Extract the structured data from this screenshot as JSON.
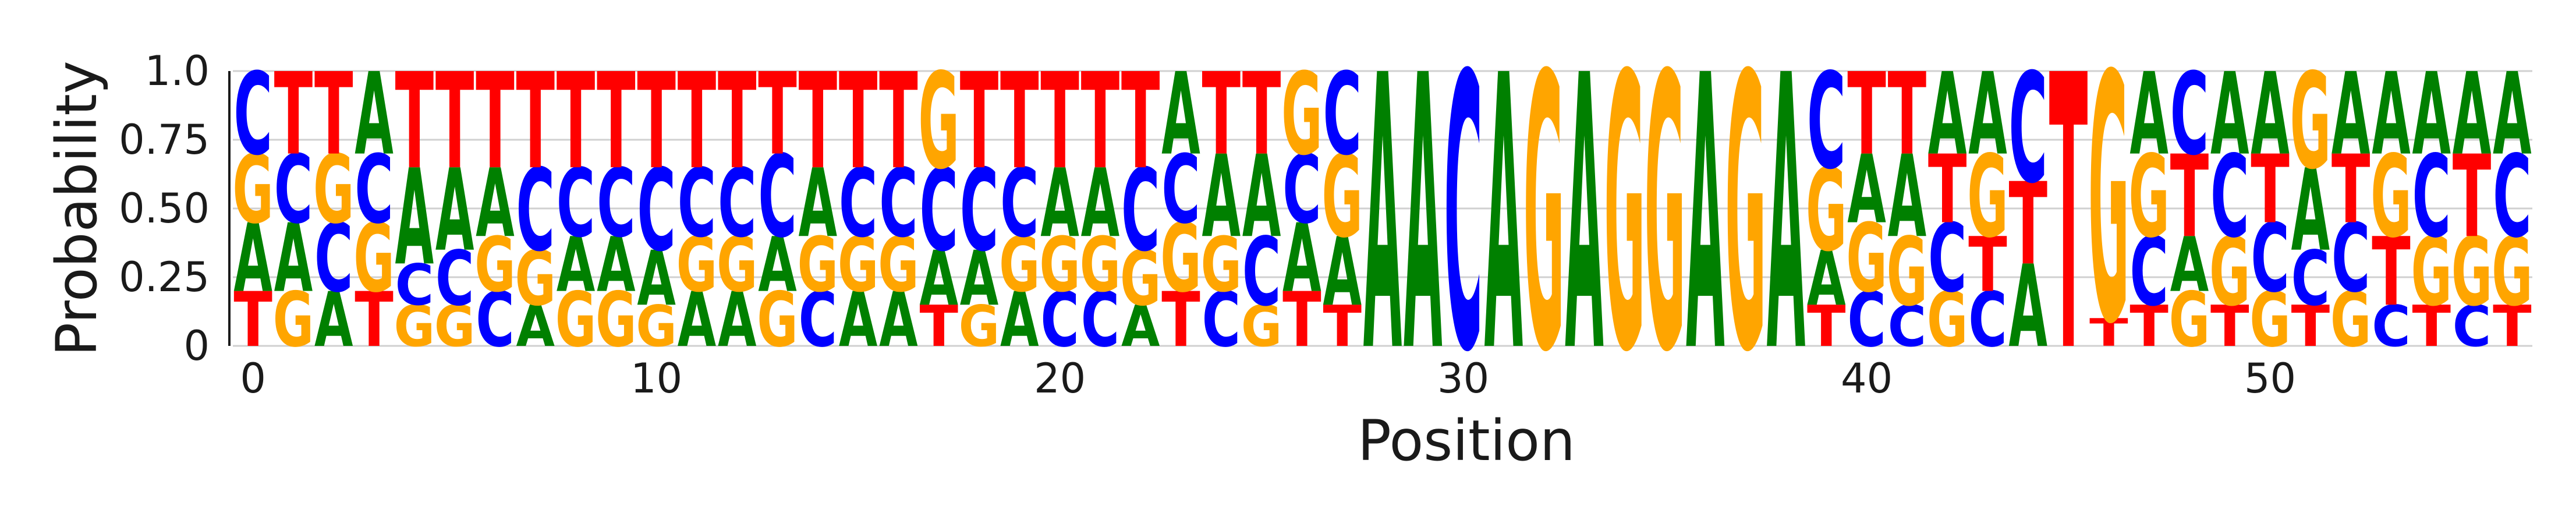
{
  "chart_data": {
    "type": "sequence-logo",
    "xlabel": "Position",
    "ylabel": "Probability",
    "ylim": [
      0,
      1
    ],
    "y_ticks": [
      0,
      0.25,
      0.5,
      0.75,
      1.0
    ],
    "y_tick_labels": [
      "0",
      "0.25",
      "0.50",
      "0.75",
      "1.0"
    ],
    "x_ticks": [
      0,
      10,
      20,
      30,
      40,
      50
    ],
    "x_tick_labels": [
      "0",
      "10",
      "20",
      "30",
      "40",
      "50"
    ],
    "grid": "horizontal",
    "colors": {
      "A": "#008000",
      "C": "#0000ff",
      "G": "#ffa500",
      "T": "#ff0000"
    },
    "positions": [
      {
        "pos": 0,
        "probs": {
          "A": 0.25,
          "G": 0.25,
          "T": 0.2,
          "C": 0.3
        }
      },
      {
        "pos": 1,
        "probs": {
          "A": 0.25,
          "G": 0.2,
          "C": 0.25,
          "T": 0.3
        }
      },
      {
        "pos": 2,
        "probs": {
          "A": 0.2,
          "C": 0.25,
          "G": 0.25,
          "T": 0.3
        }
      },
      {
        "pos": 3,
        "probs": {
          "T": 0.2,
          "G": 0.25,
          "C": 0.25,
          "A": 0.3
        }
      },
      {
        "pos": 4,
        "probs": {
          "G": 0.15,
          "C": 0.15,
          "A": 0.35,
          "T": 0.35
        }
      },
      {
        "pos": 5,
        "probs": {
          "G": 0.15,
          "C": 0.2,
          "A": 0.3,
          "T": 0.35
        }
      },
      {
        "pos": 6,
        "probs": {
          "C": 0.2,
          "G": 0.2,
          "A": 0.25,
          "T": 0.35
        }
      },
      {
        "pos": 7,
        "probs": {
          "A": 0.15,
          "G": 0.2,
          "C": 0.3,
          "T": 0.35
        }
      },
      {
        "pos": 8,
        "probs": {
          "G": 0.2,
          "A": 0.2,
          "C": 0.25,
          "T": 0.35
        }
      },
      {
        "pos": 9,
        "probs": {
          "G": 0.2,
          "C": 0.25,
          "A": 0.2,
          "T": 0.35
        }
      },
      {
        "pos": 10,
        "probs": {
          "G": 0.15,
          "A": 0.2,
          "C": 0.3,
          "T": 0.35
        }
      },
      {
        "pos": 11,
        "probs": {
          "A": 0.2,
          "C": 0.25,
          "G": 0.2,
          "T": 0.35
        }
      },
      {
        "pos": 12,
        "probs": {
          "A": 0.2,
          "C": 0.25,
          "G": 0.2,
          "T": 0.35
        }
      },
      {
        "pos": 13,
        "probs": {
          "G": 0.2,
          "A": 0.2,
          "C": 0.3,
          "T": 0.3
        }
      },
      {
        "pos": 14,
        "probs": {
          "C": 0.2,
          "G": 0.2,
          "A": 0.25,
          "T": 0.35
        }
      },
      {
        "pos": 15,
        "probs": {
          "A": 0.2,
          "C": 0.25,
          "G": 0.2,
          "T": 0.35
        }
      },
      {
        "pos": 16,
        "probs": {
          "A": 0.2,
          "C": 0.25,
          "G": 0.2,
          "T": 0.35
        }
      },
      {
        "pos": 17,
        "probs": {
          "A": 0.2,
          "T": 0.15,
          "G": 0.35,
          "C": 0.3
        }
      },
      {
        "pos": 18,
        "probs": {
          "A": 0.2,
          "G": 0.15,
          "C": 0.3,
          "T": 0.35
        }
      },
      {
        "pos": 19,
        "probs": {
          "A": 0.2,
          "G": 0.2,
          "C": 0.25,
          "T": 0.35
        }
      },
      {
        "pos": 20,
        "probs": {
          "C": 0.2,
          "G": 0.2,
          "A": 0.25,
          "T": 0.35
        }
      },
      {
        "pos": 21,
        "probs": {
          "C": 0.2,
          "G": 0.2,
          "A": 0.25,
          "T": 0.35
        }
      },
      {
        "pos": 22,
        "probs": {
          "A": 0.15,
          "G": 0.2,
          "C": 0.3,
          "T": 0.35
        }
      },
      {
        "pos": 23,
        "probs": {
          "G": 0.25,
          "T": 0.2,
          "A": 0.3,
          "C": 0.25
        }
      },
      {
        "pos": 24,
        "probs": {
          "C": 0.2,
          "G": 0.2,
          "A": 0.3,
          "T": 0.3
        }
      },
      {
        "pos": 25,
        "probs": {
          "G": 0.15,
          "C": 0.25,
          "A": 0.3,
          "T": 0.3
        }
      },
      {
        "pos": 26,
        "probs": {
          "A": 0.25,
          "C": 0.25,
          "T": 0.2,
          "G": 0.3
        }
      },
      {
        "pos": 27,
        "probs": {
          "G": 0.3,
          "T": 0.15,
          "A": 0.25,
          "C": 0.3
        }
      },
      {
        "pos": 28,
        "probs": {
          "A": 1.0
        }
      },
      {
        "pos": 29,
        "probs": {
          "A": 1.0
        }
      },
      {
        "pos": 30,
        "probs": {
          "C": 1.0
        }
      },
      {
        "pos": 31,
        "probs": {
          "A": 1.0
        }
      },
      {
        "pos": 32,
        "probs": {
          "G": 1.0
        }
      },
      {
        "pos": 33,
        "probs": {
          "A": 1.0
        }
      },
      {
        "pos": 34,
        "probs": {
          "G": 1.0
        }
      },
      {
        "pos": 35,
        "probs": {
          "G": 1.0
        }
      },
      {
        "pos": 36,
        "probs": {
          "A": 1.0
        }
      },
      {
        "pos": 37,
        "probs": {
          "G": 1.0
        }
      },
      {
        "pos": 38,
        "probs": {
          "A": 1.0
        }
      },
      {
        "pos": 39,
        "probs": {
          "T": 0.15,
          "C": 0.35,
          "G": 0.3,
          "A": 0.2
        }
      },
      {
        "pos": 40,
        "probs": {
          "C": 0.2,
          "G": 0.25,
          "A": 0.25,
          "T": 0.3
        }
      },
      {
        "pos": 41,
        "probs": {
          "C": 0.15,
          "G": 0.25,
          "A": 0.3,
          "T": 0.3
        }
      },
      {
        "pos": 42,
        "probs": {
          "G": 0.2,
          "C": 0.25,
          "T": 0.25,
          "A": 0.3
        }
      },
      {
        "pos": 43,
        "probs": {
          "C": 0.2,
          "T": 0.2,
          "G": 0.3,
          "A": 0.3
        }
      },
      {
        "pos": 44,
        "probs": {
          "A": 0.3,
          "T": 0.3,
          "C": 0.4
        }
      },
      {
        "pos": 45,
        "probs": {
          "T": 1.0
        }
      },
      {
        "pos": 46,
        "probs": {
          "G": 0.9,
          "T": 0.1
        }
      },
      {
        "pos": 47,
        "probs": {
          "T": 0.15,
          "C": 0.25,
          "G": 0.3,
          "A": 0.3
        }
      },
      {
        "pos": 48,
        "probs": {
          "G": 0.2,
          "A": 0.2,
          "T": 0.3,
          "C": 0.3
        }
      },
      {
        "pos": 49,
        "probs": {
          "T": 0.15,
          "G": 0.25,
          "C": 0.3,
          "A": 0.3
        }
      },
      {
        "pos": 50,
        "probs": {
          "G": 0.2,
          "C": 0.25,
          "T": 0.25,
          "A": 0.3
        }
      },
      {
        "pos": 51,
        "probs": {
          "C": 0.2,
          "T": 0.15,
          "G": 0.35,
          "A": 0.3
        }
      },
      {
        "pos": 52,
        "probs": {
          "C": 0.25,
          "G": 0.2,
          "T": 0.25,
          "A": 0.3
        }
      },
      {
        "pos": 53,
        "probs": {
          "C": 0.15,
          "G": 0.3,
          "T": 0.25,
          "A": 0.3
        }
      },
      {
        "pos": 54,
        "probs": {
          "T": 0.15,
          "G": 0.25,
          "C": 0.3,
          "A": 0.3
        }
      },
      {
        "pos": 55,
        "probs": {
          "C": 0.15,
          "G": 0.25,
          "T": 0.3,
          "A": 0.3
        }
      },
      {
        "pos": 56,
        "probs": {
          "T": 0.15,
          "G": 0.25,
          "C": 0.3,
          "A": 0.3
        }
      }
    ]
  }
}
